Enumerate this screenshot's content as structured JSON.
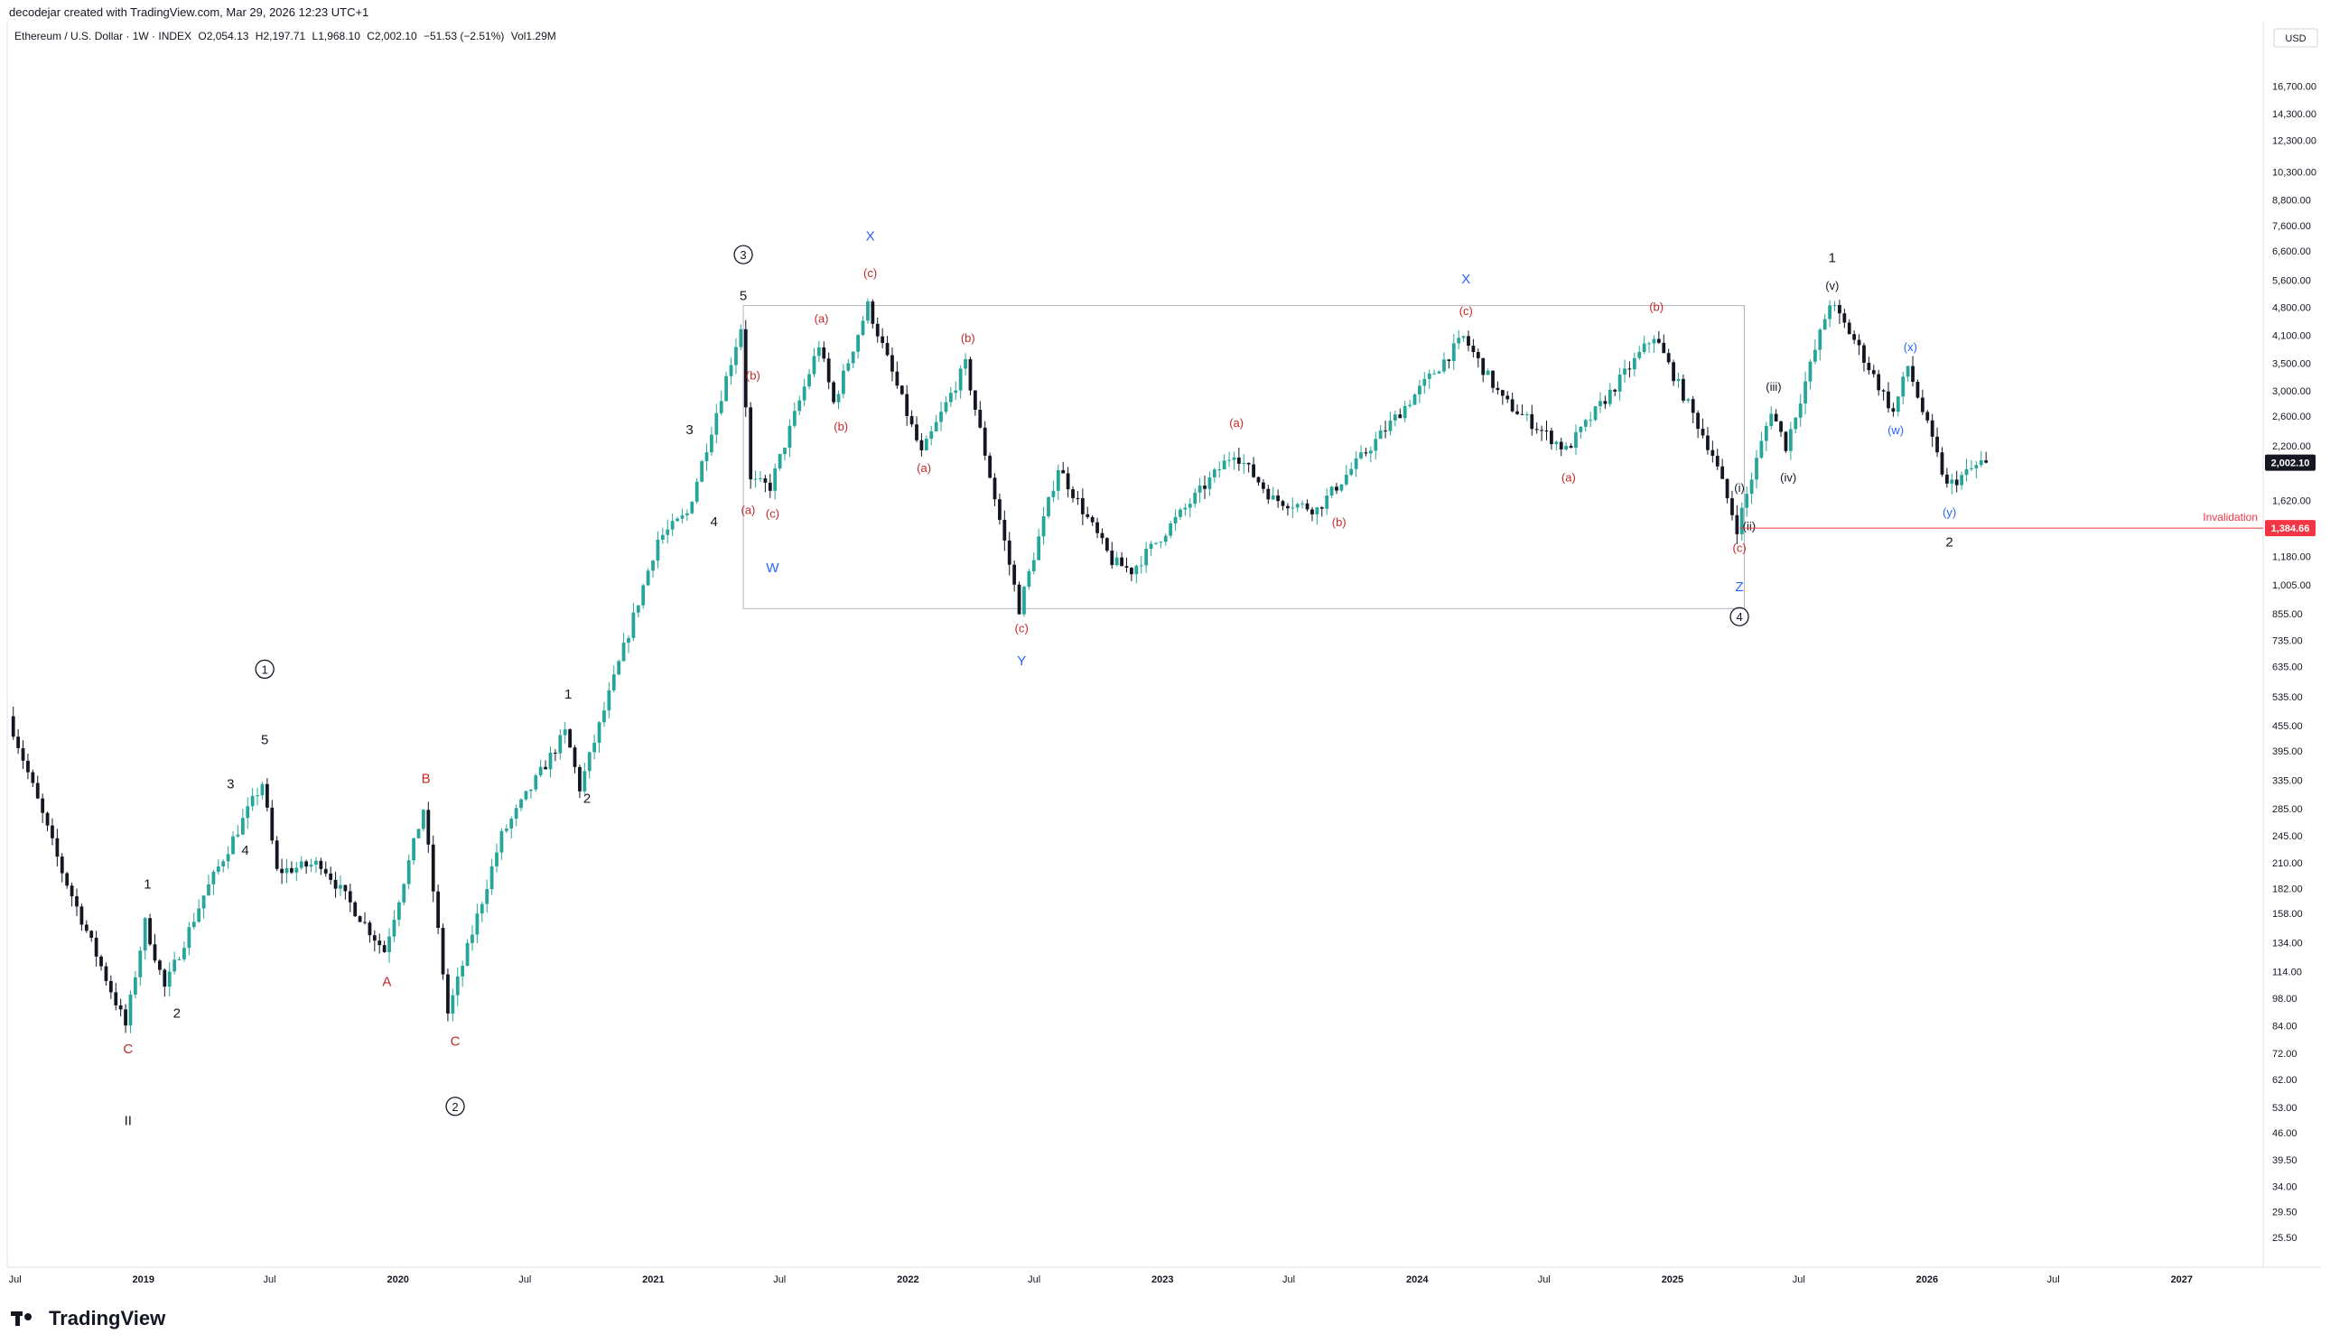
{
  "header": {
    "created_by": "decodejar created with TradingView.com, Mar 29, 2026 12:23 UTC+1",
    "symbol": "Ethereum / U.S. Dollar · 1W · INDEX",
    "ohlc": {
      "open": "O2,054.13",
      "high": "H2,197.71",
      "low": "L1,968.10",
      "close": "C2,002.10",
      "change": "−51.53 (−2.51%)",
      "volume": "Vol1.29M"
    }
  },
  "footer": {
    "brand": "TradingView"
  },
  "colors": {
    "up": "#26a69a",
    "down": "#131722",
    "red_label": "#c62828",
    "blue_label": "#2962ff",
    "invalidation": "#f23645"
  },
  "chart_data": {
    "type": "candlestick",
    "title": "",
    "currency_label": "USD",
    "y_scale": "log",
    "ylim": [
      22,
      24000
    ],
    "x_range": [
      "2018-06-25",
      "2027-04-20"
    ],
    "y_ticks": [
      "25.50",
      "29.50",
      "34.00",
      "39.50",
      "46.00",
      "53.00",
      "62.00",
      "72.00",
      "84.00",
      "98.00",
      "114.00",
      "134.00",
      "158.00",
      "182.00",
      "210.00",
      "245.00",
      "285.00",
      "335.00",
      "395.00",
      "455.00",
      "535.00",
      "635.00",
      "735.00",
      "855.00",
      "1,005.00",
      "1,180.00",
      "1,620.00",
      "2,200.00",
      "2,600.00",
      "3,000.00",
      "3,500.00",
      "4,100.00",
      "4,800.00",
      "5,600.00",
      "6,600.00",
      "7,600.00",
      "8,800.00",
      "10,300.00",
      "12,300.00",
      "14,300.00",
      "16,700.00"
    ],
    "x_ticks": [
      {
        "label": "Jul",
        "date": "2018-07-01"
      },
      {
        "label": "2019",
        "date": "2019-01-01"
      },
      {
        "label": "Jul",
        "date": "2019-07-01"
      },
      {
        "label": "2020",
        "date": "2020-01-01"
      },
      {
        "label": "Jul",
        "date": "2020-07-01"
      },
      {
        "label": "2021",
        "date": "2021-01-01"
      },
      {
        "label": "Jul",
        "date": "2021-07-01"
      },
      {
        "label": "2022",
        "date": "2022-01-01"
      },
      {
        "label": "Jul",
        "date": "2022-07-01"
      },
      {
        "label": "2023",
        "date": "2023-01-01"
      },
      {
        "label": "Jul",
        "date": "2023-07-01"
      },
      {
        "label": "2024",
        "date": "2024-01-01"
      },
      {
        "label": "Jul",
        "date": "2024-07-01"
      },
      {
        "label": "2025",
        "date": "2025-01-01"
      },
      {
        "label": "Jul",
        "date": "2025-07-01"
      },
      {
        "label": "2026",
        "date": "2026-01-01"
      },
      {
        "label": "Jul",
        "date": "2026-07-01"
      },
      {
        "label": "2027",
        "date": "2027-01-01"
      }
    ],
    "price_anchors": [
      [
        "2018-06-25",
        480
      ],
      [
        "2018-09-10",
        200
      ],
      [
        "2018-12-10",
        84
      ],
      [
        "2019-01-07",
        150
      ],
      [
        "2019-02-04",
        104
      ],
      [
        "2019-04-01",
        175
      ],
      [
        "2019-06-24",
        330
      ],
      [
        "2019-07-15",
        200
      ],
      [
        "2019-09-16",
        210
      ],
      [
        "2019-12-16",
        128
      ],
      [
        "2020-02-10",
        285
      ],
      [
        "2020-03-16",
        90
      ],
      [
        "2020-06-01",
        245
      ],
      [
        "2020-09-01",
        440
      ],
      [
        "2020-09-21",
        320
      ],
      [
        "2021-01-11",
        1300
      ],
      [
        "2021-02-22",
        1500
      ],
      [
        "2021-05-10",
        4300
      ],
      [
        "2021-05-24",
        1800
      ],
      [
        "2021-06-21",
        1750
      ],
      [
        "2021-08-30",
        3900
      ],
      [
        "2021-09-20",
        2800
      ],
      [
        "2021-11-08",
        4850
      ],
      [
        "2022-01-24",
        2100
      ],
      [
        "2022-03-28",
        3480
      ],
      [
        "2022-06-13",
        880
      ],
      [
        "2022-08-08",
        1950
      ],
      [
        "2022-10-24",
        1150
      ],
      [
        "2022-11-21",
        1090
      ],
      [
        "2023-04-17",
        2130
      ],
      [
        "2023-06-12",
        1630
      ],
      [
        "2023-08-14",
        1540
      ],
      [
        "2024-03-11",
        4050
      ],
      [
        "2024-05-06",
        2850
      ],
      [
        "2024-08-05",
        2150
      ],
      [
        "2024-12-09",
        4100
      ],
      [
        "2025-03-03",
        2100
      ],
      [
        "2025-04-07",
        1385
      ],
      [
        "2025-05-26",
        2700
      ],
      [
        "2025-06-16",
        2200
      ],
      [
        "2025-08-18",
        4950
      ],
      [
        "2025-09-22",
        4000
      ],
      [
        "2025-11-17",
        2650
      ],
      [
        "2025-12-08",
        3450
      ],
      [
        "2026-02-02",
        1750
      ],
      [
        "2026-03-23",
        2002.1
      ]
    ],
    "current_price": {
      "value": 2002.1,
      "label": "2,002.10"
    },
    "invalidation": {
      "value": 1384.66,
      "label": "1,384.66",
      "text": "Invalidation",
      "from_date": "2025-04-07"
    },
    "range_box": {
      "from": "2021-05-10",
      "to": "2025-04-14",
      "top": 4850,
      "bottom": 880
    },
    "wave_labels": [
      {
        "text": "C",
        "date": "2018-12-10",
        "price": 72,
        "color": "red"
      },
      {
        "text": "II",
        "date": "2018-12-10",
        "price": 48,
        "color": "black"
      },
      {
        "text": "1",
        "date": "2019-01-07",
        "price": 182,
        "color": "black"
      },
      {
        "text": "2",
        "date": "2019-02-18",
        "price": 88,
        "color": "black"
      },
      {
        "text": "3",
        "date": "2019-05-06",
        "price": 320,
        "color": "black"
      },
      {
        "text": "4",
        "date": "2019-05-27",
        "price": 220,
        "color": "black"
      },
      {
        "text": "5",
        "date": "2019-06-24",
        "price": 410,
        "color": "black"
      },
      {
        "text": "1",
        "date": "2019-06-24",
        "price": 610,
        "color": "black",
        "circled": true
      },
      {
        "text": "B",
        "date": "2020-02-10",
        "price": 330,
        "color": "red"
      },
      {
        "text": "A",
        "date": "2019-12-16",
        "price": 105,
        "color": "red"
      },
      {
        "text": "C",
        "date": "2020-03-23",
        "price": 75,
        "color": "red"
      },
      {
        "text": "2",
        "date": "2020-03-23",
        "price": 52,
        "color": "black",
        "circled": true
      },
      {
        "text": "1",
        "date": "2020-09-01",
        "price": 530,
        "color": "black"
      },
      {
        "text": "2",
        "date": "2020-09-28",
        "price": 295,
        "color": "black"
      },
      {
        "text": "3",
        "date": "2021-02-22",
        "price": 2350,
        "color": "black"
      },
      {
        "text": "4",
        "date": "2021-03-29",
        "price": 1400,
        "color": "black"
      },
      {
        "text": "5",
        "date": "2021-05-10",
        "price": 5000,
        "color": "black"
      },
      {
        "text": "3",
        "date": "2021-05-10",
        "price": 6300,
        "color": "black",
        "circled": true
      },
      {
        "text": "(b)",
        "date": "2021-05-24",
        "price": 3200,
        "color": "red"
      },
      {
        "text": "(a)",
        "date": "2021-05-17",
        "price": 1500,
        "color": "red"
      },
      {
        "text": "(c)",
        "date": "2021-06-21",
        "price": 1470,
        "color": "red"
      },
      {
        "text": "W",
        "date": "2021-06-21",
        "price": 1080,
        "color": "blue"
      },
      {
        "text": "(a)",
        "date": "2021-08-30",
        "price": 4400,
        "color": "red"
      },
      {
        "text": "(b)",
        "date": "2021-09-27",
        "price": 2400,
        "color": "red"
      },
      {
        "text": "(c)",
        "date": "2021-11-08",
        "price": 5700,
        "color": "red"
      },
      {
        "text": "X",
        "date": "2021-11-08",
        "price": 7000,
        "color": "blue"
      },
      {
        "text": "(a)",
        "date": "2022-01-24",
        "price": 1900,
        "color": "red"
      },
      {
        "text": "(b)",
        "date": "2022-03-28",
        "price": 3950,
        "color": "red"
      },
      {
        "text": "(c)",
        "date": "2022-06-13",
        "price": 770,
        "color": "red"
      },
      {
        "text": "Y",
        "date": "2022-06-13",
        "price": 640,
        "color": "blue"
      },
      {
        "text": "(a)",
        "date": "2023-04-17",
        "price": 2450,
        "color": "red"
      },
      {
        "text": "(b)",
        "date": "2023-09-11",
        "price": 1400,
        "color": "red"
      },
      {
        "text": "(c)",
        "date": "2024-03-11",
        "price": 4600,
        "color": "red"
      },
      {
        "text": "X",
        "date": "2024-03-11",
        "price": 5500,
        "color": "blue"
      },
      {
        "text": "(a)",
        "date": "2024-08-05",
        "price": 1800,
        "color": "red"
      },
      {
        "text": "(b)",
        "date": "2024-12-09",
        "price": 4700,
        "color": "red"
      },
      {
        "text": "(i)",
        "date": "2025-04-07",
        "price": 1700,
        "color": "black"
      },
      {
        "text": "(ii)",
        "date": "2025-04-21",
        "price": 1370,
        "color": "black"
      },
      {
        "text": "(c)",
        "date": "2025-04-07",
        "price": 1210,
        "color": "red"
      },
      {
        "text": "Z",
        "date": "2025-04-07",
        "price": 970,
        "color": "blue"
      },
      {
        "text": "4",
        "date": "2025-04-07",
        "price": 820,
        "color": "black",
        "circled": true
      },
      {
        "text": "(iii)",
        "date": "2025-05-26",
        "price": 3000,
        "color": "black"
      },
      {
        "text": "(iv)",
        "date": "2025-06-16",
        "price": 1800,
        "color": "black"
      },
      {
        "text": "(v)",
        "date": "2025-08-18",
        "price": 5300,
        "color": "black"
      },
      {
        "text": "1",
        "date": "2025-08-18",
        "price": 6200,
        "color": "black"
      },
      {
        "text": "(x)",
        "date": "2025-12-08",
        "price": 3750,
        "color": "blue"
      },
      {
        "text": "(w)",
        "date": "2025-11-17",
        "price": 2350,
        "color": "blue"
      },
      {
        "text": "(y)",
        "date": "2026-02-02",
        "price": 1480,
        "color": "blue"
      },
      {
        "text": "2",
        "date": "2026-02-02",
        "price": 1250,
        "color": "black"
      }
    ]
  }
}
